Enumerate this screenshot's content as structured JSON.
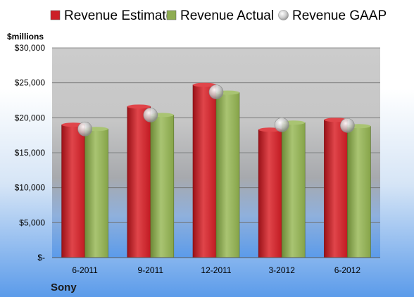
{
  "chart_data": {
    "type": "bar",
    "company": "Sony",
    "unit_label": "$millions",
    "categories": [
      "6-2011",
      "9-2011",
      "12-2011",
      "3-2012",
      "6-2012"
    ],
    "series": [
      {
        "name": "Revenue Estimate",
        "kind": "bar",
        "values": [
          19000,
          21600,
          24700,
          18300,
          19700
        ]
      },
      {
        "name": "Revenue Actual",
        "kind": "bar",
        "values": [
          18400,
          20400,
          23600,
          19300,
          18800
        ]
      },
      {
        "name": "Revenue GAAP",
        "kind": "marker",
        "values": [
          18400,
          20400,
          23700,
          19000,
          18900
        ]
      }
    ],
    "ylim": [
      0,
      30000
    ],
    "y_ticks": [
      {
        "value": 0,
        "label": "$-"
      },
      {
        "value": 5000,
        "label": "$5,000"
      },
      {
        "value": 10000,
        "label": "$10,000"
      },
      {
        "value": 15000,
        "label": "$15,000"
      },
      {
        "value": 20000,
        "label": "$20,000"
      },
      {
        "value": 25000,
        "label": "$25,000"
      },
      {
        "value": 30000,
        "label": "$30,000"
      }
    ],
    "grid": true,
    "legend_position": "top",
    "colors": {
      "estimate": "#cc2027",
      "actual": "#8fad52",
      "gaap": "#c8c8c8",
      "plot_top": "#cccccc",
      "plot_bottom": "#5b9bea"
    }
  }
}
